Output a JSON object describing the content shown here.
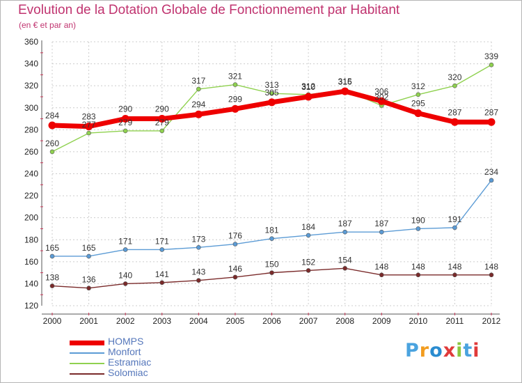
{
  "title": "Evolution de la Dotation Globale de Fonctionnement par Habitant",
  "subtitle": "(en € et par an)",
  "brand": {
    "name": "Proxiti",
    "letter_colors": [
      "#4aa3df",
      "#f29c1f",
      "#2a8cd0",
      "#e03a3a",
      "#8cc63f",
      "#4aa3df",
      "#e03a3a"
    ]
  },
  "chart_data": {
    "type": "line",
    "x": [
      2000,
      2001,
      2002,
      2003,
      2004,
      2005,
      2006,
      2007,
      2008,
      2009,
      2010,
      2011,
      2012
    ],
    "ylim": [
      120,
      360
    ],
    "yticks": [
      120,
      140,
      160,
      180,
      200,
      220,
      240,
      260,
      280,
      300,
      320,
      340,
      360
    ],
    "grid": true,
    "legend": "bottom-left",
    "series": [
      {
        "name": "HOMPS",
        "color": "#ee0000",
        "values": [
          284,
          283,
          290,
          290,
          294,
          299,
          305,
          310,
          315,
          306,
          295,
          287,
          287
        ]
      },
      {
        "name": "Monfort",
        "color": "#5b9bd5",
        "values": [
          165,
          165,
          171,
          171,
          173,
          176,
          181,
          184,
          187,
          187,
          190,
          191,
          234
        ]
      },
      {
        "name": "Estramiac",
        "color": "#8fd14f",
        "values": [
          260,
          277,
          279,
          279,
          317,
          321,
          313,
          312,
          316,
          302,
          312,
          320,
          339
        ]
      },
      {
        "name": "Solomiac",
        "color": "#7a2a2a",
        "values": [
          138,
          136,
          140,
          141,
          143,
          146,
          150,
          152,
          154,
          148,
          148,
          148,
          148
        ]
      }
    ]
  }
}
